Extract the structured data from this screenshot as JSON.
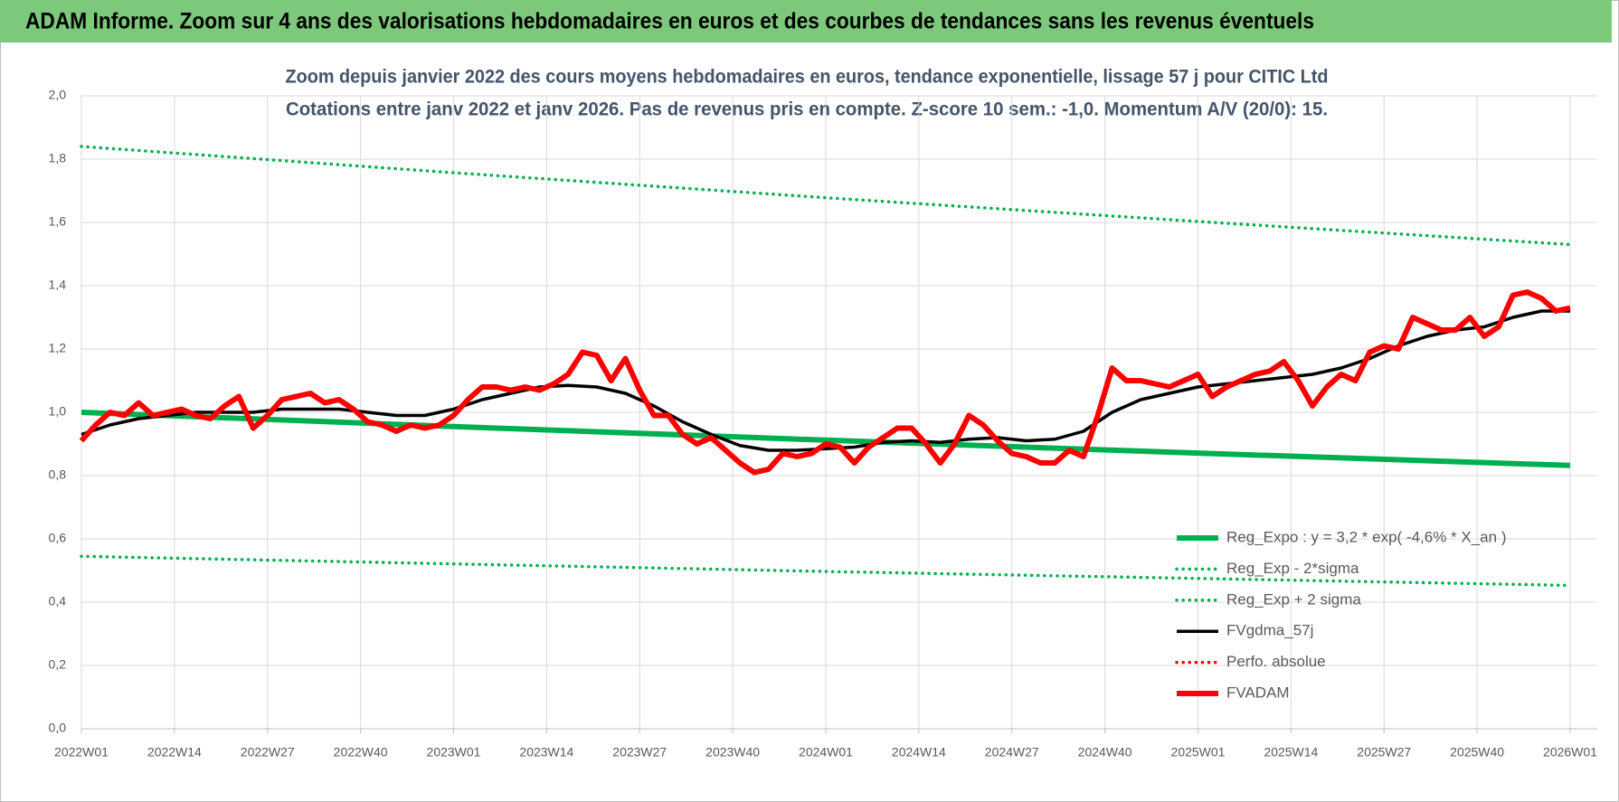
{
  "header": {
    "title": "ADAM Informe. Zoom sur 4 ans des valorisations hebdomadaires en euros et des courbes de tendances sans les revenus éventuels"
  },
  "chart_data": {
    "type": "line",
    "title": [
      "Zoom depuis janvier 2022 des cours moyens hebdomadaires en euros, tendance exponentielle, lissage 57 j pour CITIC Ltd",
      "Cotations entre janv 2022 et janv 2026. Pas de revenus pris en compte. Z-score 10 sem.: -1,0. Momentum A/V (20/0): 15."
    ],
    "xlim": [
      0,
      208
    ],
    "xticks": [
      {
        "value": 0,
        "label": "2022W01"
      },
      {
        "value": 13,
        "label": "2022W14"
      },
      {
        "value": 26,
        "label": "2022W27"
      },
      {
        "value": 39,
        "label": "2022W40"
      },
      {
        "value": 52,
        "label": "2023W01"
      },
      {
        "value": 65,
        "label": "2023W14"
      },
      {
        "value": 78,
        "label": "2023W27"
      },
      {
        "value": 91,
        "label": "2023W40"
      },
      {
        "value": 104,
        "label": "2024W01"
      },
      {
        "value": 117,
        "label": "2024W14"
      },
      {
        "value": 130,
        "label": "2024W27"
      },
      {
        "value": 143,
        "label": "2024W40"
      },
      {
        "value": 156,
        "label": "2025W01"
      },
      {
        "value": 169,
        "label": "2025W14"
      },
      {
        "value": 182,
        "label": "2025W27"
      },
      {
        "value": 195,
        "label": "2025W40"
      },
      {
        "value": 208,
        "label": "2026W01"
      }
    ],
    "ylim": [
      0,
      2
    ],
    "yticks": [
      {
        "value": 0,
        "label": "0,0"
      },
      {
        "value": 0.2,
        "label": "0,2"
      },
      {
        "value": 0.4,
        "label": "0,4"
      },
      {
        "value": 0.6,
        "label": "0,6"
      },
      {
        "value": 0.8,
        "label": "0,8"
      },
      {
        "value": 1,
        "label": "1,0"
      },
      {
        "value": 1.2,
        "label": "1,2"
      },
      {
        "value": 1.4,
        "label": "1,4"
      },
      {
        "value": 1.6,
        "label": "1,6"
      },
      {
        "value": 1.8,
        "label": "1,8"
      },
      {
        "value": 2,
        "label": "2,0"
      }
    ],
    "grid": true,
    "legend": "lower-right",
    "series": [
      {
        "name": "Reg_Expo : y = 3,2 * exp( -4,6% *  X_an )",
        "color": "#00b050",
        "style": "thick",
        "x": [
          0,
          52,
          104,
          156,
          208
        ],
        "values": [
          1.0,
          0.955,
          0.912,
          0.871,
          0.832
        ]
      },
      {
        "name": "Reg_Exp - 2*sigma",
        "color": "#00b050",
        "style": "dotted",
        "x": [
          0,
          52,
          104,
          156,
          208
        ],
        "values": [
          0.545,
          0.521,
          0.497,
          0.475,
          0.453
        ]
      },
      {
        "name": "Reg_Exp + 2 sigma",
        "color": "#00b050",
        "style": "dotted",
        "x": [
          0,
          52,
          104,
          156,
          208
        ],
        "values": [
          1.84,
          1.757,
          1.678,
          1.603,
          1.53
        ]
      },
      {
        "name": "FVgdma_57j",
        "color": "#000000",
        "style": "medium",
        "x": [
          0,
          4,
          8,
          12,
          16,
          20,
          24,
          28,
          32,
          36,
          40,
          44,
          48,
          52,
          56,
          60,
          64,
          68,
          72,
          76,
          80,
          84,
          88,
          92,
          96,
          100,
          104,
          108,
          112,
          116,
          120,
          124,
          128,
          132,
          136,
          140,
          144,
          148,
          152,
          156,
          160,
          164,
          168,
          172,
          176,
          180,
          184,
          188,
          192,
          196,
          200,
          204,
          208
        ],
        "values": [
          0.93,
          0.96,
          0.98,
          0.99,
          1.0,
          1.0,
          1.0,
          1.01,
          1.01,
          1.01,
          1.0,
          0.99,
          0.99,
          1.01,
          1.04,
          1.06,
          1.08,
          1.085,
          1.08,
          1.06,
          1.02,
          0.97,
          0.93,
          0.895,
          0.88,
          0.88,
          0.885,
          0.89,
          0.905,
          0.91,
          0.905,
          0.915,
          0.92,
          0.91,
          0.915,
          0.94,
          1.0,
          1.04,
          1.06,
          1.08,
          1.09,
          1.1,
          1.11,
          1.12,
          1.14,
          1.17,
          1.21,
          1.24,
          1.26,
          1.27,
          1.3,
          1.32,
          1.32
        ]
      },
      {
        "name": "Perfo. absolue",
        "color": "#ff0000",
        "style": "dotted",
        "x": [],
        "values": []
      },
      {
        "name": "FVADAM",
        "color": "#ff0000",
        "style": "thick",
        "x": [
          0,
          2,
          4,
          6,
          8,
          10,
          12,
          14,
          16,
          18,
          20,
          22,
          24,
          26,
          28,
          30,
          32,
          34,
          36,
          38,
          40,
          42,
          44,
          46,
          48,
          50,
          52,
          54,
          56,
          58,
          60,
          62,
          64,
          66,
          68,
          70,
          72,
          74,
          76,
          78,
          80,
          82,
          84,
          86,
          88,
          90,
          92,
          94,
          96,
          98,
          100,
          102,
          104,
          106,
          108,
          110,
          112,
          114,
          116,
          118,
          120,
          122,
          124,
          126,
          128,
          130,
          132,
          134,
          136,
          138,
          140,
          142,
          144,
          146,
          148,
          150,
          152,
          154,
          156,
          158,
          160,
          162,
          164,
          166,
          168,
          170,
          172,
          174,
          176,
          178,
          180,
          182,
          184,
          186,
          188,
          190,
          192,
          194,
          196,
          198,
          200,
          202,
          204,
          206,
          208
        ],
        "values": [
          0.91,
          0.96,
          1.0,
          0.99,
          1.03,
          0.99,
          1.0,
          1.01,
          0.99,
          0.98,
          1.02,
          1.05,
          0.95,
          0.99,
          1.04,
          1.05,
          1.06,
          1.03,
          1.04,
          1.01,
          0.97,
          0.96,
          0.94,
          0.96,
          0.95,
          0.96,
          0.99,
          1.04,
          1.08,
          1.08,
          1.07,
          1.08,
          1.07,
          1.09,
          1.12,
          1.19,
          1.18,
          1.1,
          1.17,
          1.07,
          0.99,
          0.99,
          0.93,
          0.9,
          0.92,
          0.88,
          0.84,
          0.81,
          0.82,
          0.87,
          0.86,
          0.87,
          0.9,
          0.89,
          0.84,
          0.89,
          0.92,
          0.95,
          0.95,
          0.9,
          0.84,
          0.9,
          0.99,
          0.96,
          0.91,
          0.87,
          0.86,
          0.84,
          0.84,
          0.88,
          0.86,
          0.99,
          1.14,
          1.1,
          1.1,
          1.09,
          1.08,
          1.1,
          1.12,
          1.05,
          1.08,
          1.1,
          1.12,
          1.13,
          1.16,
          1.1,
          1.02,
          1.08,
          1.12,
          1.1,
          1.19,
          1.21,
          1.2,
          1.3,
          1.28,
          1.26,
          1.26,
          1.3,
          1.24,
          1.27,
          1.37,
          1.38,
          1.36,
          1.32,
          1.33
        ]
      }
    ]
  }
}
